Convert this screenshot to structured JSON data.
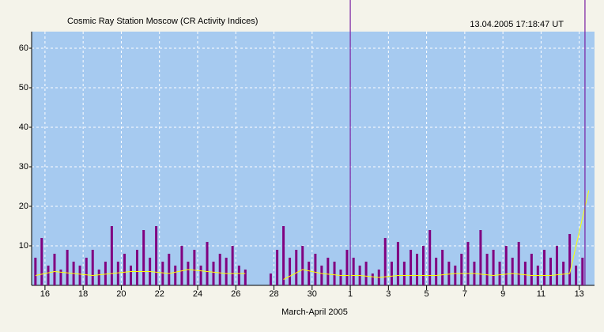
{
  "chart_data": {
    "type": "bar",
    "title": "Cosmic Ray Station Moscow (CR Activity Indices)",
    "timestamp": "13.04.2005 17:18:47 UT",
    "x_label": "March-April 2005",
    "xlim": [
      15.3,
      44.8
    ],
    "xticks": [
      16,
      18,
      20,
      22,
      24,
      26,
      28,
      30,
      {
        "value": 32,
        "label": "1"
      },
      {
        "value": 34,
        "label": "3"
      },
      {
        "value": 36,
        "label": "5"
      },
      {
        "value": 38,
        "label": "7"
      },
      {
        "value": 40,
        "label": "9"
      },
      {
        "value": 42,
        "label": "11"
      },
      {
        "value": 44,
        "label": "13"
      }
    ],
    "ylim": [
      0,
      64.2
    ],
    "yticks": [
      10,
      20,
      30,
      40,
      50,
      60
    ],
    "grid": true,
    "markers": [
      32,
      44.3
    ],
    "marker_color": "#7a1fa2",
    "series": [
      {
        "type": "bar",
        "color": "#800080",
        "x": [
          15.5,
          15.83,
          16.17,
          16.5,
          16.83,
          17.17,
          17.5,
          17.83,
          18.17,
          18.5,
          18.83,
          19.17,
          19.5,
          19.83,
          20.17,
          20.5,
          20.83,
          21.17,
          21.5,
          21.83,
          22.17,
          22.5,
          22.83,
          23.17,
          23.5,
          23.83,
          24.17,
          24.5,
          24.83,
          25.17,
          25.5,
          25.83,
          26.17,
          26.5,
          26.83,
          27.17,
          27.5,
          27.83,
          28.17,
          28.5,
          28.83,
          29.17,
          29.5,
          29.83,
          30.17,
          30.5,
          30.83,
          31.17,
          31.5,
          31.83,
          32.17,
          32.5,
          32.83,
          33.17,
          33.5,
          33.83,
          34.17,
          34.5,
          34.83,
          35.17,
          35.5,
          35.83,
          36.17,
          36.5,
          36.83,
          37.17,
          37.5,
          37.83,
          38.17,
          38.5,
          38.83,
          39.17,
          39.5,
          39.83,
          40.17,
          40.5,
          40.83,
          41.17,
          41.5,
          41.83,
          42.17,
          42.5,
          42.83,
          43.17,
          43.5,
          43.83,
          44.17
        ],
        "values": [
          7,
          12,
          5,
          8,
          4,
          9,
          6,
          5,
          7,
          9,
          4,
          6,
          15,
          6,
          8,
          5,
          9,
          14,
          7,
          15,
          6,
          8,
          5,
          10,
          6,
          9,
          5,
          11,
          6,
          8,
          7,
          10,
          5,
          4,
          null,
          null,
          null,
          3,
          9,
          15,
          7,
          9,
          10,
          6,
          8,
          5,
          7,
          6,
          4,
          9,
          7,
          5,
          6,
          3,
          4,
          12,
          6,
          11,
          6,
          9,
          8,
          10,
          14,
          7,
          9,
          6,
          5,
          8,
          11,
          6,
          14,
          8,
          9,
          6,
          10,
          7,
          11,
          6,
          8,
          5,
          9,
          7,
          10,
          6,
          13,
          5,
          7
        ]
      },
      {
        "type": "line",
        "color": "#ffff00",
        "x": [
          15.5,
          16.5,
          17.5,
          18.5,
          19.5,
          20.5,
          21.5,
          22.5,
          23.5,
          24.5,
          25.5,
          26.5,
          27.5,
          28.5,
          29.5,
          30.5,
          31.5,
          32.5,
          33.5,
          34.5,
          35.5,
          36.5,
          37.5,
          38.5,
          39.5,
          40.5,
          41.5,
          42.5,
          43.5,
          44.5
        ],
        "values": [
          2.5,
          3.5,
          3,
          2.5,
          3,
          3.5,
          3.5,
          3,
          4,
          3.5,
          3,
          3,
          null,
          1.5,
          4,
          3,
          2.5,
          2.5,
          2,
          2.5,
          2.5,
          2.5,
          3,
          3,
          2.5,
          3,
          2.5,
          2.5,
          3,
          24
        ]
      }
    ]
  }
}
